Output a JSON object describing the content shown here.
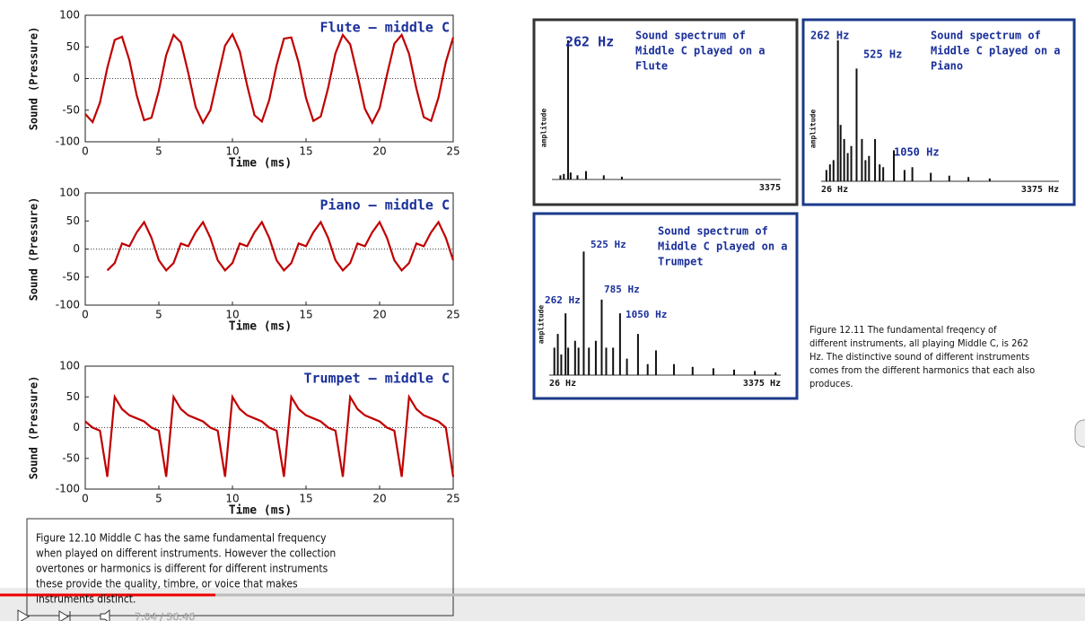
{
  "chart_data": [
    {
      "type": "line",
      "title": "Flute – middle C",
      "xlabel": "Time (ms)",
      "ylabel": "Sound (Pressure)",
      "xlim": [
        0,
        25
      ],
      "xticks": [
        0,
        5,
        10,
        15,
        20,
        25
      ],
      "ylim": [
        -100,
        100
      ],
      "yticks": [
        100,
        50,
        0,
        -50,
        -100
      ],
      "color": "#c00000",
      "x": [
        0,
        0.5,
        1,
        1.5,
        2,
        2.5,
        3,
        3.5,
        4,
        4.5,
        5,
        5.5,
        6,
        6.5,
        7,
        7.5,
        8,
        8.5,
        9,
        9.5,
        10,
        10.5,
        11,
        11.5,
        12,
        12.5,
        13,
        13.5,
        14,
        14.5,
        15,
        15.5,
        16,
        16.5,
        17,
        17.5,
        18,
        18.5,
        19,
        19.5,
        20,
        20.5,
        21,
        21.5,
        22,
        22.5,
        23,
        23.5,
        24,
        24.5,
        25
      ],
      "values": [
        -56,
        -69,
        -38,
        17,
        61,
        66,
        29,
        -27,
        -66,
        -62,
        -19,
        37,
        69,
        57,
        9,
        -45,
        -70,
        -50,
        1,
        52,
        70,
        43,
        -11,
        -58,
        -68,
        -34,
        21,
        63,
        65,
        25,
        -31,
        -67,
        -60,
        -15,
        40,
        69,
        54,
        5,
        -48,
        -70,
        -47,
        6,
        55,
        69,
        39,
        -16,
        -61,
        -67,
        -30,
        26,
        65
      ]
    },
    {
      "type": "line",
      "title": "Piano – middle C",
      "xlabel": "Time (ms)",
      "ylabel": "Sound (Pressure)",
      "xlim": [
        0,
        25
      ],
      "xticks": [
        0,
        5,
        10,
        15,
        20,
        25
      ],
      "ylim": [
        -100,
        100
      ],
      "yticks": [
        100,
        50,
        0,
        -50,
        -100
      ],
      "color": "#c00000",
      "x": [
        1.5,
        2,
        2.5,
        3,
        3.5,
        4,
        4.5,
        5,
        5.5,
        6,
        6.5,
        7,
        7.5,
        8,
        8.5,
        9,
        9.5,
        10,
        10.5,
        11,
        11.5,
        12,
        12.5,
        13,
        13.5,
        14,
        14.5,
        15,
        15.5,
        16,
        16.5,
        17,
        17.5,
        18,
        18.5,
        19,
        19.5,
        20,
        20.5,
        21,
        21.5,
        22,
        22.5,
        23,
        23.5,
        24,
        24.5,
        25
      ],
      "values": [
        -38,
        -25,
        10,
        5,
        30,
        48,
        20,
        -20,
        -38,
        -25,
        10,
        5,
        30,
        48,
        20,
        -20,
        -38,
        -25,
        10,
        5,
        30,
        48,
        20,
        -20,
        -38,
        -25,
        10,
        5,
        30,
        48,
        20,
        -20,
        -38,
        -25,
        10,
        5,
        30,
        48,
        20,
        -20,
        -38,
        -25,
        10,
        5,
        30,
        48,
        20,
        -20
      ]
    },
    {
      "type": "line",
      "title": "Trumpet – middle C",
      "xlabel": "Time (ms)",
      "ylabel": "Sound (Pressure)",
      "xlim": [
        0,
        25
      ],
      "xticks": [
        0,
        5,
        10,
        15,
        20,
        25
      ],
      "ylim": [
        -100,
        100
      ],
      "yticks": [
        100,
        50,
        0,
        -50,
        -100
      ],
      "color": "#c00000",
      "x": [
        0,
        0.5,
        1,
        1.5,
        2,
        2.5,
        3,
        3.5,
        4,
        4.5,
        5,
        5.5,
        6,
        6.5,
        7,
        7.5,
        8,
        8.5,
        9,
        9.5,
        10,
        10.5,
        11,
        11.5,
        12,
        12.5,
        13,
        13.5,
        14,
        14.5,
        15,
        15.5,
        16,
        16.5,
        17,
        17.5,
        18,
        18.5,
        19,
        19.5,
        20,
        20.5,
        21,
        21.5,
        22,
        22.5,
        23,
        23.5,
        24,
        24.5,
        25
      ],
      "values": [
        10,
        0,
        -5,
        -80,
        50,
        30,
        20,
        15,
        10,
        0,
        -5,
        -80,
        50,
        30,
        20,
        15,
        10,
        0,
        -5,
        -80,
        50,
        30,
        20,
        15,
        10,
        0,
        -5,
        -80,
        50,
        30,
        20,
        15,
        10,
        0,
        -5,
        -80,
        50,
        30,
        20,
        15,
        10,
        0,
        -5,
        -80,
        50,
        30,
        20,
        15,
        10,
        0,
        -80
      ]
    },
    {
      "type": "bar",
      "title": [
        "Sound spectrum of",
        "Middle C played on a",
        "Flute"
      ],
      "ylabel": "amplitude",
      "annotations": [
        "262 Hz"
      ],
      "xlim": [
        26,
        3375
      ],
      "xticks": [
        {
          "value": 3375,
          "label": "3375"
        }
      ],
      "ylim": [
        0,
        100
      ],
      "color": "#111111",
      "x": [
        150,
        200,
        262,
        300,
        400,
        525,
        785,
        1050
      ],
      "values": [
        3,
        4,
        100,
        5,
        3,
        6,
        3,
        2
      ]
    },
    {
      "type": "bar",
      "title": [
        "Sound spectrum of",
        "Middle C played on a",
        "Piano"
      ],
      "ylabel": "amplitude",
      "annotations": [
        "262 Hz",
        "525 Hz",
        "1050 Hz"
      ],
      "xlim": [
        26,
        3375
      ],
      "xticks": [
        {
          "value": 26,
          "label": "26 Hz"
        },
        {
          "value": 3375,
          "label": "3375 Hz"
        }
      ],
      "ylim": [
        0,
        100
      ],
      "color": "#111111",
      "x": [
        100,
        150,
        200,
        262,
        300,
        350,
        400,
        450,
        525,
        600,
        650,
        700,
        785,
        850,
        900,
        1050,
        1200,
        1310,
        1570,
        1830,
        2100,
        2400
      ],
      "values": [
        8,
        12,
        15,
        100,
        40,
        30,
        20,
        25,
        80,
        30,
        15,
        18,
        30,
        12,
        10,
        22,
        8,
        10,
        6,
        4,
        3,
        2
      ]
    },
    {
      "type": "bar",
      "title": [
        "Sound spectrum of",
        "Middle C played on a",
        "Trumpet"
      ],
      "ylabel": "amplitude",
      "annotations": [
        "525 Hz",
        "262 Hz",
        "785 Hz",
        "1050 Hz"
      ],
      "xlim": [
        26,
        3375
      ],
      "xticks": [
        {
          "value": 26,
          "label": "26 Hz"
        },
        {
          "value": 3375,
          "label": "3375 Hz"
        }
      ],
      "ylim": [
        0,
        100
      ],
      "color": "#111111",
      "x": [
        100,
        150,
        200,
        262,
        300,
        400,
        450,
        525,
        600,
        700,
        785,
        850,
        950,
        1050,
        1150,
        1310,
        1450,
        1570,
        1830,
        2100,
        2400,
        2700,
        3000,
        3300
      ],
      "values": [
        20,
        30,
        15,
        45,
        20,
        25,
        20,
        90,
        20,
        25,
        55,
        20,
        20,
        45,
        12,
        30,
        8,
        18,
        8,
        6,
        5,
        4,
        3,
        2
      ]
    }
  ],
  "captions": [
    [
      "Figure 12.10  Middle C has the same fundamental frequency",
      "when played on different instruments.  However the collection",
      "overtones or harmonics is different for different instruments",
      "these provide the quality, timbre, or voice that makes",
      "instruments distinct."
    ],
    [
      "Figure 12.11  The fundamental freqency of",
      "different instruments, all playing Middle C, is 262",
      "Hz.  The distinctive sound of different instruments",
      "comes from the  different harmonics that each also",
      "produces."
    ]
  ],
  "player": {
    "time": "7:04 / 36:46"
  }
}
